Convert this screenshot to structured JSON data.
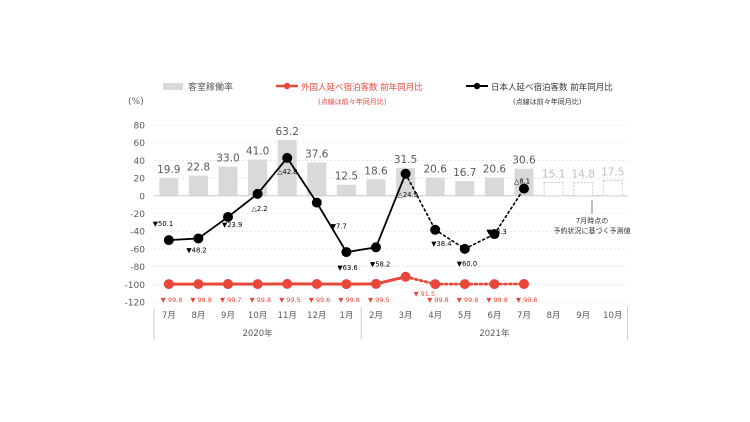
{
  "chart_data": {
    "type": "bar+line",
    "legend": {
      "occupancy": "客室稼働率",
      "foreign": "外国人延べ宿泊客数 前年同月比",
      "foreign_note": "(点線は前々年同月比)",
      "japanese": "日本人延べ宿泊客数 前年同月比",
      "japanese_note": "(点線は前々年同月比)"
    },
    "y_unit": "(%)",
    "ylim": [
      -120,
      80
    ],
    "yticks": [
      "80",
      "60",
      "40",
      "20",
      "0",
      "-20",
      "-40",
      "-60",
      "-80",
      "-100",
      "-120"
    ],
    "grid": true,
    "categories": [
      "7月",
      "8月",
      "9月",
      "10月",
      "11月",
      "12月",
      "1月",
      "2月",
      "3月",
      "4月",
      "5月",
      "6月",
      "7月",
      "8月",
      "9月",
      "10月"
    ],
    "year_labels": [
      {
        "label": "2020年",
        "from": 0,
        "to": 6
      },
      {
        "label": "2021年",
        "from": 7,
        "to": 15
      }
    ],
    "occupancy": {
      "values": [
        19.9,
        22.8,
        33.0,
        41.0,
        63.2,
        37.6,
        12.5,
        18.6,
        31.5,
        20.6,
        16.7,
        20.6,
        30.6,
        15.1,
        14.8,
        17.5
      ],
      "labels": [
        "19.9",
        "22.8",
        "33.0",
        "41.0",
        "63.2",
        "37.6",
        "12.5",
        "18.6",
        "31.5",
        "20.6",
        "16.7",
        "20.6",
        "30.6",
        "15.1",
        "14.8",
        "17.5"
      ],
      "forecast_from": 13,
      "forecast_note": [
        "7月時点の",
        "予約状況に基づく予測値"
      ]
    },
    "japanese": {
      "values": [
        -50.1,
        -48.2,
        -23.9,
        2.2,
        42.8,
        -7.7,
        -63.6,
        -58.2,
        24.9,
        -38.4,
        -60.0,
        -43.3,
        8.1
      ],
      "labels": [
        "▼50.1",
        "▼48.2",
        "▼23.9",
        "△2.2",
        "△42.8",
        "▼7.7",
        "▼63.6",
        "▼58.2",
        "△24.9",
        "▼38.4",
        "▼60.0",
        "▼43.3",
        "△8.1"
      ],
      "dotted_from": 8
    },
    "foreign": {
      "values": [
        -99.8,
        -99.8,
        -99.7,
        -99.8,
        -99.5,
        -99.6,
        -99.8,
        -99.5,
        -91.5,
        -99.8,
        -99.8,
        -99.8,
        -99.6
      ],
      "labels": [
        "99.8",
        "99.8",
        "99.7",
        "99.8",
        "99.5",
        "99.6",
        "99.8",
        "99.5",
        "91.5",
        "99.8",
        "99.8",
        "99.8",
        "99.6"
      ],
      "dotted_from": 8
    },
    "colors": {
      "occupancy": "#d9d9d9",
      "foreign": "#e8473a",
      "japanese": "#000000",
      "grid": "#d9d9d9",
      "text": "#595959"
    }
  }
}
